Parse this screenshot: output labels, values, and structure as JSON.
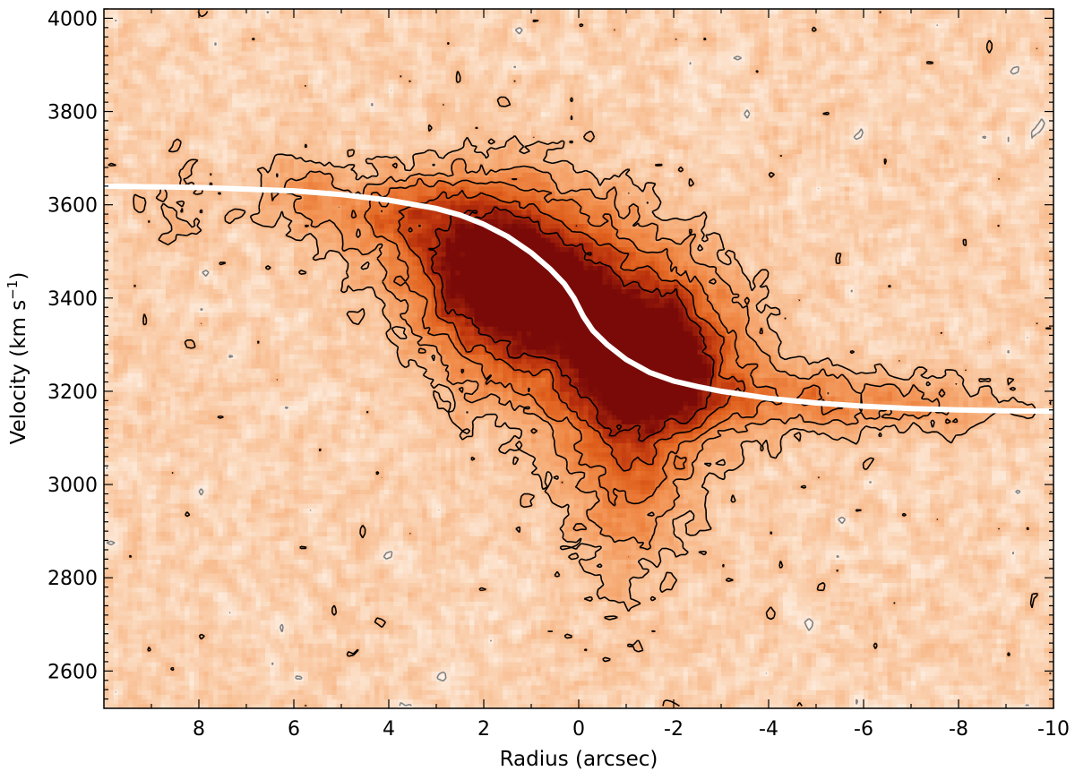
{
  "chart_data": {
    "type": "heatmap",
    "title": "",
    "xlabel": "Radius (arcsec)",
    "ylabel": "Velocity (km s",
    "ylabel_sup": "−1",
    "ylabel_close": ")",
    "xlim": [
      10,
      -10
    ],
    "ylim": [
      2520,
      4020
    ],
    "x_ticks": [
      8,
      6,
      4,
      2,
      0,
      -2,
      -4,
      -6,
      -8,
      -10
    ],
    "x_tick_labels": [
      "8",
      "6",
      "4",
      "2",
      "0",
      "-2",
      "-4",
      "-6",
      "-8",
      "-10"
    ],
    "y_ticks": [
      2600,
      2800,
      3000,
      3200,
      3400,
      3600,
      3800,
      4000
    ],
    "y_tick_labels": [
      "2600",
      "2800",
      "3000",
      "3200",
      "3400",
      "3600",
      "3800",
      "4000"
    ],
    "colormap": [
      "#ffffff",
      "#fbd9bd",
      "#f7b27f",
      "#f08a48",
      "#e0601d",
      "#b8300c",
      "#7a0a08"
    ],
    "emission_components": [
      {
        "x": 1.8,
        "y": 3460,
        "sx": 1.3,
        "sy": 120,
        "amp": 1.0
      },
      {
        "x": -1.8,
        "y": 3260,
        "sx": 1.1,
        "sy": 110,
        "amp": 1.0
      },
      {
        "x": 0.0,
        "y": 3360,
        "sx": 1.6,
        "sy": 150,
        "amp": 0.75
      },
      {
        "x": -1.0,
        "y": 3030,
        "sx": 0.9,
        "sy": 160,
        "amp": 0.45
      },
      {
        "x": 3.8,
        "y": 3580,
        "sx": 1.3,
        "sy": 60,
        "amp": 0.45
      },
      {
        "x": 6.0,
        "y": 3630,
        "sx": 0.6,
        "sy": 50,
        "amp": 0.25
      },
      {
        "x": -4.5,
        "y": 3190,
        "sx": 1.5,
        "sy": 50,
        "amp": 0.3
      },
      {
        "x": -7.0,
        "y": 3170,
        "sx": 1.8,
        "sy": 40,
        "amp": 0.25
      },
      {
        "x": 8.5,
        "y": 3600,
        "sx": 0.5,
        "sy": 60,
        "amp": 0.15
      }
    ],
    "rotation_curve": {
      "name": "",
      "color": "#ffffff",
      "x": [
        10,
        8,
        6,
        5,
        4,
        3,
        2.5,
        2,
        1.5,
        1,
        0.6,
        0.3,
        0.1,
        0,
        -0.1,
        -0.3,
        -0.6,
        -1,
        -1.5,
        -2,
        -2.5,
        -3,
        -4,
        -5,
        -6,
        -7,
        -8,
        -9,
        -10
      ],
      "y": [
        3640,
        3637,
        3630,
        3622,
        3610,
        3592,
        3578,
        3558,
        3532,
        3497,
        3462,
        3430,
        3400,
        3380,
        3360,
        3330,
        3300,
        3268,
        3240,
        3222,
        3210,
        3200,
        3185,
        3175,
        3168,
        3163,
        3160,
        3158,
        3157
      ]
    },
    "contour_style": {
      "positive": "#000000",
      "negative": "#808080"
    },
    "grid": false,
    "legend": "none"
  }
}
